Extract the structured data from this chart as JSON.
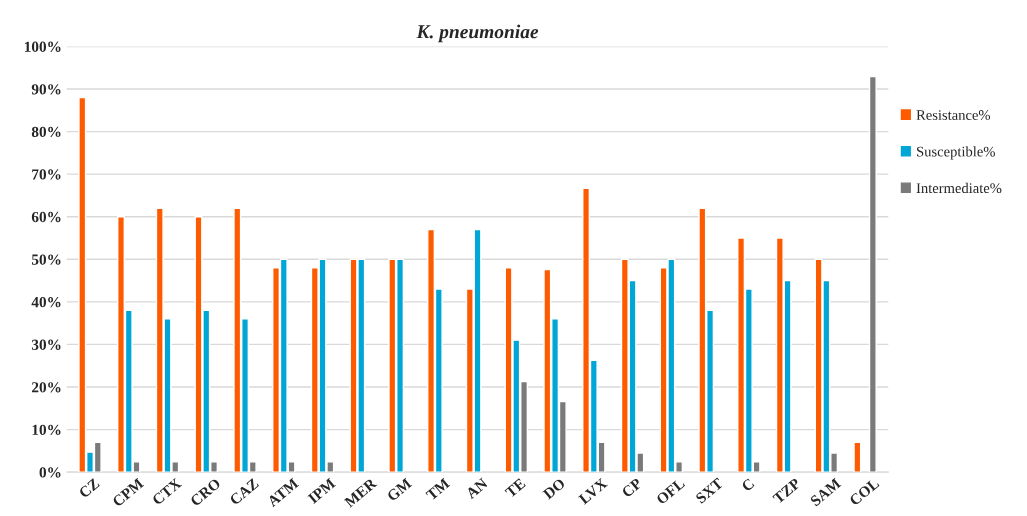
{
  "chart_data": {
    "type": "bar",
    "title": "K. pneumoniae",
    "categories": [
      "CZ",
      "CPM",
      "CTX",
      "CRO",
      "CAZ",
      "ATM",
      "IPM",
      "MER",
      "GM",
      "TM",
      "AN",
      "TE",
      "DO",
      "LVX",
      "CP",
      "OFL",
      "SXT",
      "C",
      "TZP",
      "SAM",
      "COL"
    ],
    "series": [
      {
        "name": "Resistance%",
        "color": "#fe5a00",
        "values": [
          88,
          60,
          62,
          60,
          62,
          48,
          48,
          50,
          50,
          57,
          43,
          48,
          47.6,
          66.7,
          50,
          48,
          62,
          55,
          55,
          50,
          7
        ]
      },
      {
        "name": "Susceptible%",
        "color": "#00a6d6",
        "values": [
          4.7,
          38,
          36,
          38,
          36,
          50,
          50,
          50,
          50,
          43,
          57,
          31,
          36,
          26.3,
          45,
          50,
          38,
          43,
          45,
          45,
          null
        ]
      },
      {
        "name": "Intermediate%",
        "color": "#7a7a7a",
        "values": [
          7,
          2.4,
          2.4,
          2.4,
          2.4,
          2.4,
          2.4,
          null,
          null,
          null,
          null,
          21.3,
          16.6,
          7,
          4.5,
          2.4,
          null,
          2.4,
          null,
          4.5,
          92.9
        ]
      }
    ],
    "ylim": [
      0,
      100
    ],
    "yticks": [
      {
        "value": 0,
        "label": "0%"
      },
      {
        "value": 10,
        "label": "10%"
      },
      {
        "value": 20,
        "label": "20%"
      },
      {
        "value": 30,
        "label": "30%"
      },
      {
        "value": 40,
        "label": "40%"
      },
      {
        "value": 50,
        "label": "50%"
      },
      {
        "value": 60,
        "label": "60%"
      },
      {
        "value": 70,
        "label": "70%"
      },
      {
        "value": 80,
        "label": "80%"
      },
      {
        "value": 90,
        "label": "90%"
      },
      {
        "value": 100,
        "label": "100%"
      }
    ],
    "grid": "y",
    "legend": "right"
  }
}
